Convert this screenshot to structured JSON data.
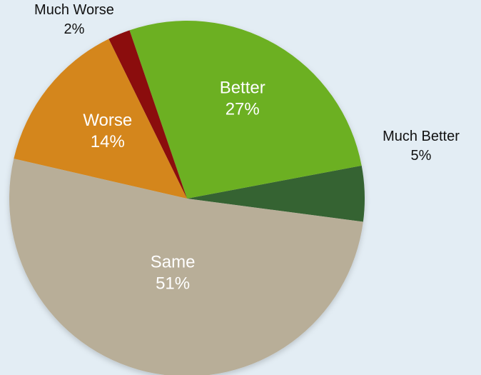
{
  "chart_data": {
    "type": "pie",
    "title": "",
    "categories": [
      "Much Better",
      "Better",
      "Much Worse",
      "Worse",
      "Same"
    ],
    "values": [
      5,
      27,
      2,
      14,
      51
    ],
    "value_labels": [
      "5%",
      "27%",
      "2%",
      "14%",
      "51%"
    ],
    "label_placement": [
      "outside",
      "inside",
      "outside",
      "inside",
      "inside"
    ],
    "colors": [
      "#366332",
      "#6cb021",
      "#8b0a0b",
      "#d4861a",
      "#b8ae98"
    ],
    "legend": "none",
    "start_angle": "right, counter-clockwise"
  }
}
